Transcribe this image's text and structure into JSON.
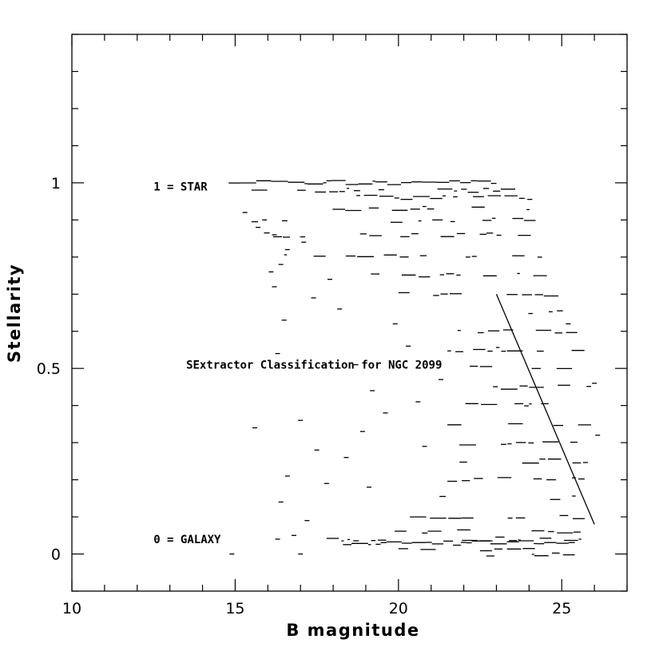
{
  "chart_data": {
    "type": "scatter",
    "title": "",
    "xlabel": "B magnitude",
    "ylabel": "Stellarity",
    "xlim": [
      10,
      27
    ],
    "ylim": [
      -0.1,
      1.4
    ],
    "x_ticks": [
      {
        "value": 10,
        "label": "10"
      },
      {
        "value": 15,
        "label": "15"
      },
      {
        "value": 20,
        "label": "20"
      },
      {
        "value": 25,
        "label": "25"
      }
    ],
    "y_ticks": [
      {
        "value": 0,
        "label": "0"
      },
      {
        "value": 0.5,
        "label": "0.5"
      },
      {
        "value": 1,
        "label": "1"
      }
    ],
    "x_minor_step": 1,
    "y_minor_step": 0.1,
    "grid": false,
    "annotations": [
      {
        "text": "1 = STAR",
        "x": 12.5,
        "y": 0.99
      },
      {
        "text": "0 = GALAXY",
        "x": 12.5,
        "y": 0.04
      },
      {
        "text": "SExtractor Classification for NGC 2099",
        "x": 13.5,
        "y": 0.51
      }
    ],
    "separation_line": {
      "x": [
        23.0,
        26.0
      ],
      "y": [
        0.7,
        0.08
      ]
    },
    "density_bands": [
      {
        "y": 1.0,
        "x_start": 14.8,
        "x_end": 23.0,
        "density": "full"
      },
      {
        "y": 0.98,
        "x_start": 15.5,
        "x_end": 23.6,
        "density": "dense"
      },
      {
        "y": 0.96,
        "x_start": 16.5,
        "x_end": 24.1,
        "density": "dense"
      },
      {
        "y": 0.93,
        "x_start": 15.5,
        "x_end": 24.2,
        "density": "medium"
      },
      {
        "y": 0.9,
        "x_start": 15.5,
        "x_end": 24.2,
        "density": "medium"
      },
      {
        "y": 0.86,
        "x_start": 15.5,
        "x_end": 24.3,
        "density": "medium"
      },
      {
        "y": 0.8,
        "x_start": 16.5,
        "x_end": 24.4,
        "density": "medium"
      },
      {
        "y": 0.75,
        "x_start": 18.0,
        "x_end": 24.6,
        "density": "medium"
      },
      {
        "y": 0.7,
        "x_start": 20.0,
        "x_end": 25.4,
        "density": "medium"
      },
      {
        "y": 0.65,
        "x_start": 20.5,
        "x_end": 25.6,
        "density": "medium"
      },
      {
        "y": 0.6,
        "x_start": 21.5,
        "x_end": 25.6,
        "density": "medium"
      },
      {
        "y": 0.55,
        "x_start": 21.5,
        "x_end": 25.8,
        "density": "medium"
      },
      {
        "y": 0.5,
        "x_start": 21.5,
        "x_end": 25.9,
        "density": "medium"
      },
      {
        "y": 0.45,
        "x_start": 21.5,
        "x_end": 25.9,
        "density": "medium"
      },
      {
        "y": 0.4,
        "x_start": 21.5,
        "x_end": 25.9,
        "density": "medium"
      },
      {
        "y": 0.35,
        "x_start": 21.5,
        "x_end": 25.9,
        "density": "medium"
      },
      {
        "y": 0.3,
        "x_start": 21.5,
        "x_end": 25.9,
        "density": "medium"
      },
      {
        "y": 0.25,
        "x_start": 21.5,
        "x_end": 25.8,
        "density": "medium"
      },
      {
        "y": 0.2,
        "x_start": 21.5,
        "x_end": 25.7,
        "density": "medium"
      },
      {
        "y": 0.15,
        "x_start": 21.0,
        "x_end": 25.7,
        "density": "medium"
      },
      {
        "y": 0.1,
        "x_start": 20.0,
        "x_end": 25.7,
        "density": "medium"
      },
      {
        "y": 0.06,
        "x_start": 18.0,
        "x_end": 25.6,
        "density": "medium"
      },
      {
        "y": 0.04,
        "x_start": 17.5,
        "x_end": 25.6,
        "density": "dense"
      },
      {
        "y": 0.03,
        "x_start": 18.3,
        "x_end": 25.4,
        "density": "full"
      },
      {
        "y": 0.01,
        "x_start": 20.0,
        "x_end": 25.4,
        "density": "dense"
      },
      {
        "y": 0.0,
        "x_start": 22.5,
        "x_end": 25.4,
        "density": "dense"
      }
    ],
    "scattered_points": [
      {
        "x": 15.7,
        "y": 0.88
      },
      {
        "x": 15.3,
        "y": 0.92
      },
      {
        "x": 16.2,
        "y": 0.86
      },
      {
        "x": 16.6,
        "y": 0.82
      },
      {
        "x": 17.1,
        "y": 0.84
      },
      {
        "x": 16.4,
        "y": 0.78
      },
      {
        "x": 16.2,
        "y": 0.72
      },
      {
        "x": 17.4,
        "y": 0.69
      },
      {
        "x": 16.5,
        "y": 0.63
      },
      {
        "x": 18.2,
        "y": 0.66
      },
      {
        "x": 17.9,
        "y": 0.74
      },
      {
        "x": 16.3,
        "y": 0.54
      },
      {
        "x": 15.6,
        "y": 0.34
      },
      {
        "x": 16.4,
        "y": 0.14
      },
      {
        "x": 16.6,
        "y": 0.21
      },
      {
        "x": 17.5,
        "y": 0.28
      },
      {
        "x": 17.8,
        "y": 0.19
      },
      {
        "x": 18.4,
        "y": 0.26
      },
      {
        "x": 18.7,
        "y": 0.51
      },
      {
        "x": 19.2,
        "y": 0.44
      },
      {
        "x": 19.6,
        "y": 0.38
      },
      {
        "x": 20.3,
        "y": 0.56
      },
      {
        "x": 19.9,
        "y": 0.62
      },
      {
        "x": 17.0,
        "y": 0.36
      },
      {
        "x": 19.1,
        "y": 0.18
      },
      {
        "x": 18.9,
        "y": 0.33
      },
      {
        "x": 20.8,
        "y": 0.29
      },
      {
        "x": 17.2,
        "y": 0.09
      },
      {
        "x": 16.8,
        "y": 0.05
      },
      {
        "x": 16.3,
        "y": 0.04
      },
      {
        "x": 17.0,
        "y": 0.0
      },
      {
        "x": 14.9,
        "y": 0.0
      },
      {
        "x": 21.3,
        "y": 0.47
      },
      {
        "x": 20.6,
        "y": 0.41
      },
      {
        "x": 26.1,
        "y": 0.32
      },
      {
        "x": 26.0,
        "y": 0.46
      },
      {
        "x": 25.2,
        "y": 0.62
      },
      {
        "x": 16.1,
        "y": 0.76
      },
      {
        "x": 15.9,
        "y": 0.9
      }
    ]
  }
}
